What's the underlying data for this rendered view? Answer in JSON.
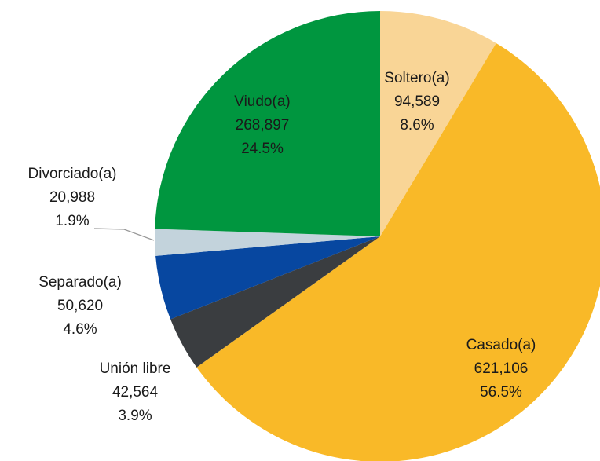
{
  "chart_data": {
    "type": "pie",
    "categories": [
      "Soltero(a)",
      "Casado(a)",
      "Unión libre",
      "Separado(a)",
      "Divorciado(a)",
      "Viudo(a)"
    ],
    "values": [
      94589,
      621106,
      42564,
      50620,
      20988,
      268897
    ],
    "value_labels": [
      "94,589",
      "621,106",
      "42,564",
      "50,620",
      "20,988",
      "268,897"
    ],
    "percentages": [
      8.6,
      56.5,
      3.9,
      4.6,
      1.9,
      24.5
    ],
    "percentage_labels": [
      "8.6%",
      "56.5%",
      "3.9%",
      "4.6%",
      "1.9%",
      "24.5%"
    ],
    "colors": [
      "#f9d596",
      "#f9b928",
      "#3a3d40",
      "#0747a0",
      "#c3d3dc",
      "#00963f"
    ]
  }
}
